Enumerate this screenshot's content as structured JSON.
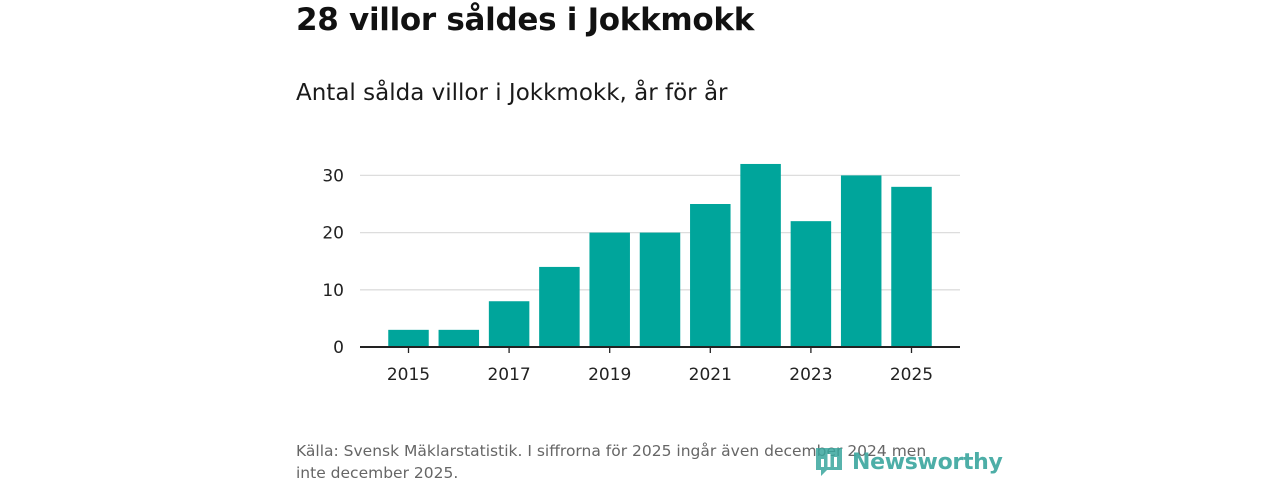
{
  "header": {
    "title": "28 villor såldes i Jokkmokk",
    "subtitle": "Antal sålda villor i Jokkmokk, år för år"
  },
  "footer": {
    "source": "Källa: Svensk Mäklarstatistik. I siffrorna för 2025 ingår även december 2024 men inte december 2025.",
    "logo_text": "Newsworthy",
    "logo_icon": "bar-chart-speech-bubble-icon"
  },
  "colors": {
    "bar": "#00a59b",
    "grid": "#dddddd",
    "axis": "#222222",
    "logo": "#3aa69e"
  },
  "chart_data": {
    "type": "bar",
    "title": "Antal sålda villor i Jokkmokk, år för år",
    "xlabel": "",
    "ylabel": "",
    "categories": [
      "2015",
      "2016",
      "2017",
      "2018",
      "2019",
      "2020",
      "2021",
      "2022",
      "2023",
      "2024",
      "2025"
    ],
    "values": [
      3,
      3,
      8,
      14,
      20,
      20,
      25,
      32,
      22,
      30,
      28
    ],
    "x_tick_labels": [
      "2015",
      "2017",
      "2019",
      "2021",
      "2023",
      "2025"
    ],
    "y_ticks": [
      0,
      10,
      20,
      30
    ],
    "ylim": [
      0,
      32
    ],
    "grid": "horizontal",
    "legend": "none"
  }
}
